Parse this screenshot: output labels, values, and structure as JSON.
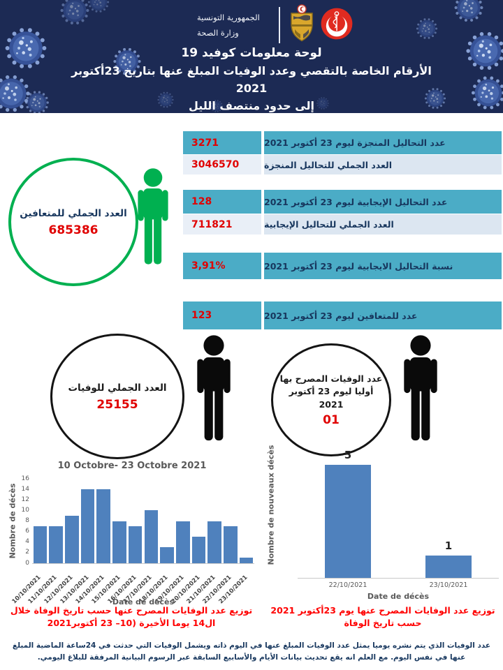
{
  "header": {
    "gov_line1": "الجمهورية التونسية",
    "gov_line2": "وزارة الصحة",
    "title_line1": "لوحة معلومات كوفيد  19",
    "title_line2": "الأرقام الخاصة بالتقصي وعدد الوفيات المبلغ عنها بتاريخ  23أكتوبر 2021",
    "title_line3": "إلى حدود منتصف الليل"
  },
  "recovered_circle": {
    "label": "العدد الجملي للمتعافين",
    "value": "685386"
  },
  "stats_rows": [
    {
      "label": "عدد التحاليل المنجزة ليوم  23 أكتوبر 2021",
      "value": "3271"
    },
    {
      "label": "العدد الجملي للتحاليل المنجزة",
      "value": "3046570"
    },
    {
      "label": "عدد التحاليل الإيجابية ليوم  23 أكتوبر 2021",
      "value": "128"
    },
    {
      "label": "العدد الجملي للتحاليل الإيجابية",
      "value": "711821"
    },
    {
      "label": "نسبة التحاليل الايجابية ليوم 23 أكتوبر 2021",
      "value": "3,91%"
    },
    {
      "label": "عدد للمتعافين ليوم 23 أكتوبر 2021",
      "value": "123"
    }
  ],
  "deaths_circle": {
    "label": "العدد الجملي للوفيات",
    "value": "25155"
  },
  "initial_deaths_circle": {
    "line1": "عدد الوفيات المصرح بها",
    "line2": "أوليا ليوم 23  أكتوبر",
    "line3": "2021",
    "value": "01"
  },
  "chart_data": [
    {
      "type": "bar",
      "title": "10 Octobre- 23 Octobre 2021",
      "xlabel": "Date de décès",
      "ylabel": "Nombre de décès",
      "categories": [
        "10/10/2021",
        "11/10/2021",
        "12/10/2021",
        "13/10/2021",
        "14/10/2021",
        "15/10/2021",
        "16/10/2021",
        "17/10/2021",
        "18/10/2021",
        "19/10/2021",
        "20/10/2021",
        "21/10/2021",
        "22/10/2021",
        "23/10/2021"
      ],
      "values": [
        7,
        7,
        9,
        14,
        14,
        8,
        7,
        10,
        3,
        8,
        5,
        8,
        7,
        1
      ],
      "ylim": [
        0,
        16
      ],
      "yticks": [
        0,
        2,
        4,
        6,
        8,
        10,
        12,
        14,
        16
      ],
      "grid": false,
      "bar_color": "#4f81bd",
      "caption": "توزيع عدد الوفايات المصرح عنها حسب تاريخ الوفاة خلال ال14 يوما الأخيرة (10– 23 أكتوبر2021"
    },
    {
      "type": "bar",
      "title": "",
      "xlabel": "Date de décès",
      "ylabel": "Nombre de nouveaux décès",
      "categories": [
        "22/10/2021",
        "23/10/2021"
      ],
      "values": [
        5,
        1
      ],
      "data_labels": [
        "5",
        "1"
      ],
      "ylim": [
        0,
        5.5
      ],
      "grid": false,
      "bar_color": "#4f81bd",
      "caption": "توزيع عدد الوفايات المصرح عنها يوم  23أكتوبر 2021 حسب تاريخ الوفاة"
    }
  ],
  "footer_note": "عدد الوفيات الذي يتم نشره يوميا يمثل عدد الوفيات المبلغ عنها في اليوم ذاته ويشمل الوفيات التي حدثت في 24ساعة الماضية المبلغ عنها في نفس  اليوم. مع العلم انه يقع تحديث بيانات الأيام والأسابيع السابقة عبر الرسوم البيانية المرفقة للبلاغ اليومي.",
  "colors": {
    "header_bg": "#1c2a54",
    "teal_row": "#4bacc6",
    "light_row": "#dce6f1",
    "value_red": "#e00000",
    "navy_text": "#17365d",
    "recovered_green": "#00b050",
    "bar_blue": "#4f81bd",
    "caption_red": "#ff0000",
    "axis_gray": "#595959"
  }
}
